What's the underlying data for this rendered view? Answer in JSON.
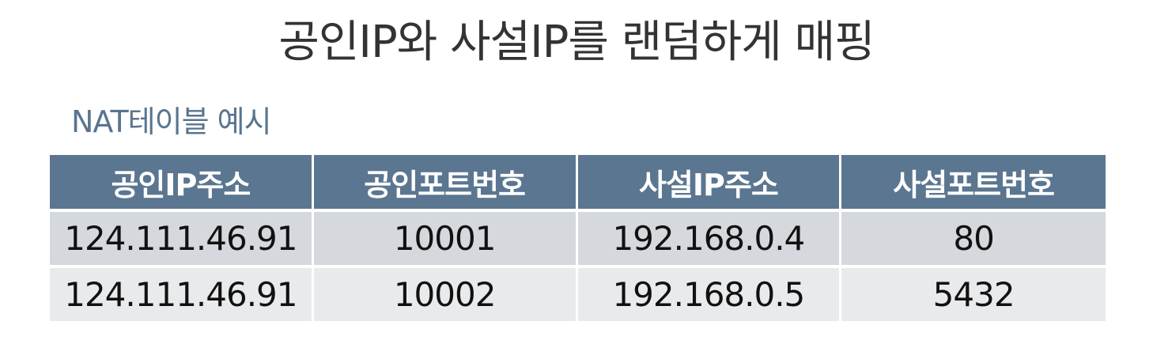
{
  "title": "공인IP와 사설IP를 랜덤하게 매핑",
  "subtitle": "NAT테이블 예시",
  "table": {
    "headers": [
      "공인IP주소",
      "공인포트번호",
      "사설IP주소",
      "사설포트번호"
    ],
    "rows": [
      [
        "124.111.46.91",
        "10001",
        "192.168.0.4",
        "80"
      ],
      [
        "124.111.46.91",
        "10002",
        "192.168.0.5",
        "5432"
      ]
    ]
  },
  "colors": {
    "header_bg": "#5b7690",
    "subtitle": "#5a748f",
    "row1_bg": "#d5d8dc",
    "row2_bg": "#e9eaec"
  }
}
